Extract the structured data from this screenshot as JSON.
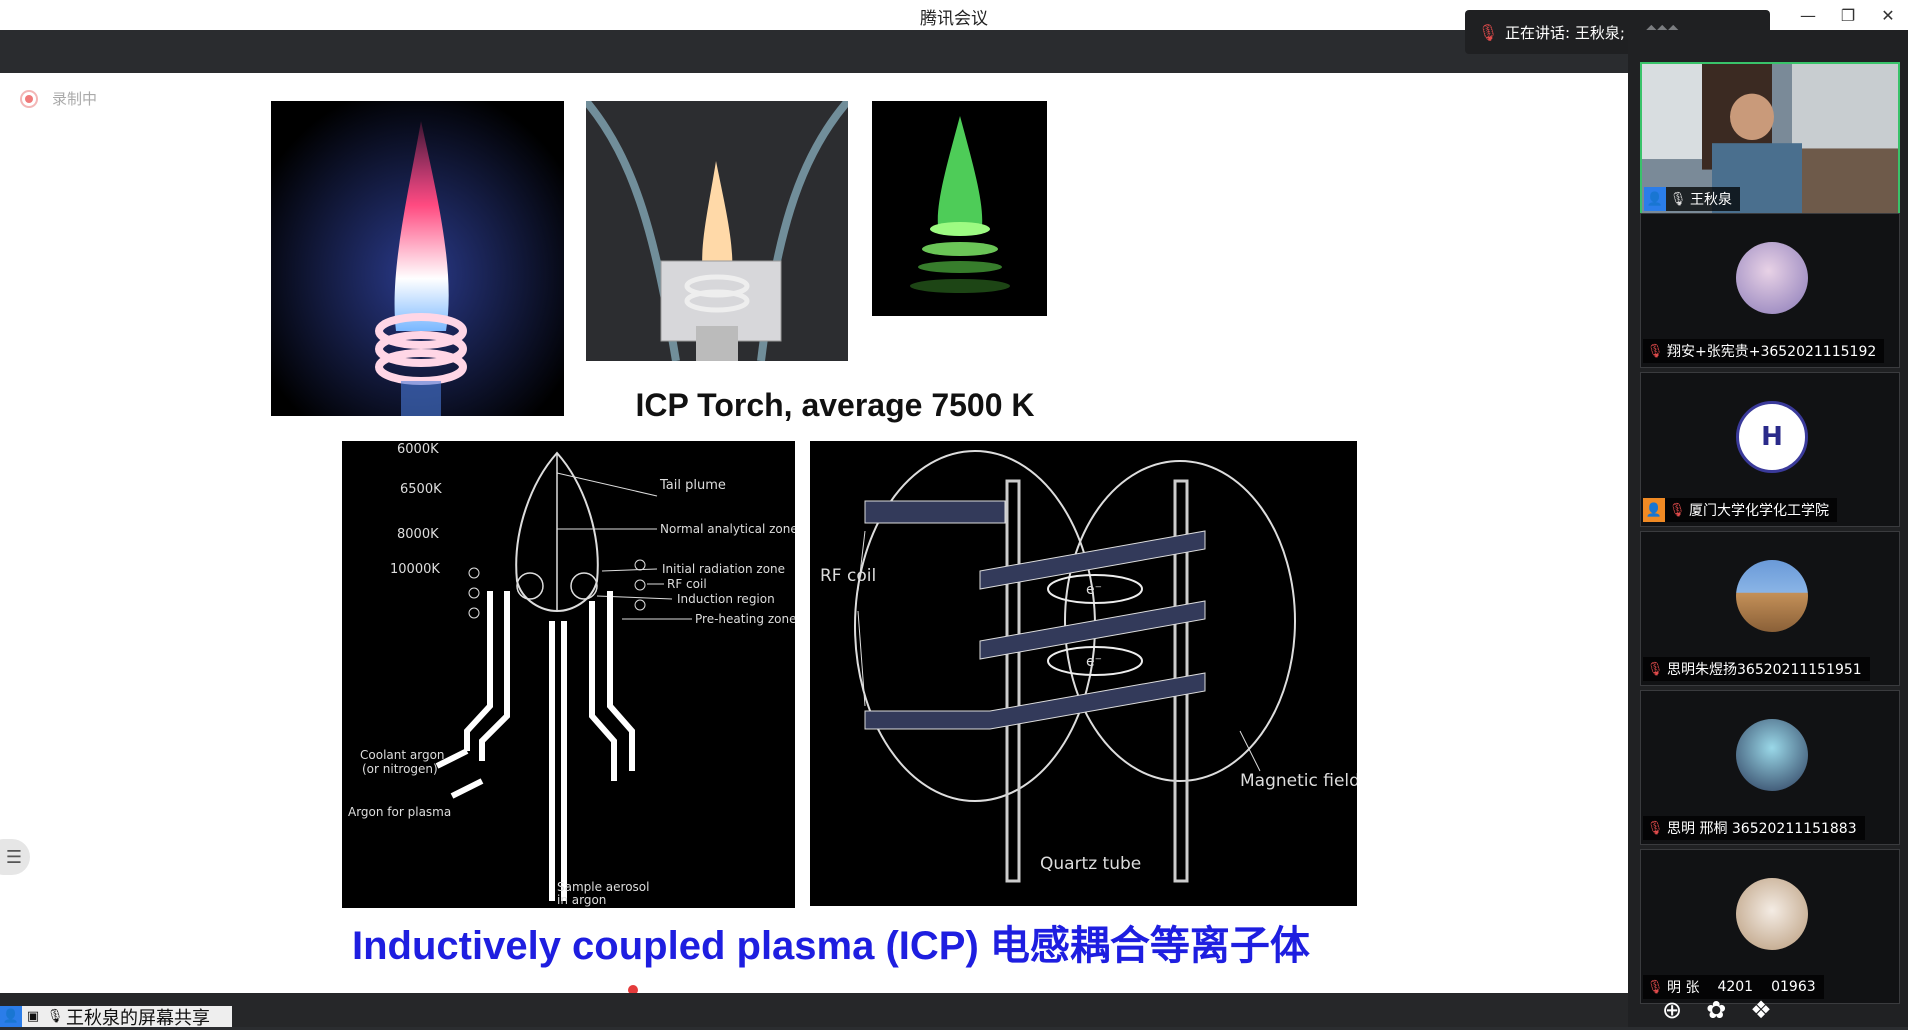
{
  "window": {
    "title": "腾讯会议",
    "controls": {
      "minimize": "—",
      "restore": "❐",
      "close": "✕"
    }
  },
  "speaking": {
    "label": "正在讲话: 王秋泉;"
  },
  "recording": {
    "label": "录制中"
  },
  "slide": {
    "heading_torch": "ICP Torch, average 7500 K",
    "heading_main": "Inductively coupled plasma (ICP) 电感耦合等离子体",
    "diagram_left": {
      "temps": [
        "6000K",
        "6500K",
        "8000K",
        "10000K"
      ],
      "labels": [
        "Tail plume",
        "Normal analytical zone",
        "Initial radiation zone",
        "RF coil",
        "Induction region",
        "Pre-heating zone",
        "Coolant argon",
        "(or nitrogen)",
        "Argon for plasma",
        "Sample aerosol",
        "in argon"
      ]
    },
    "diagram_right": {
      "labels": [
        "RF coil",
        "Magnetic field",
        "Quartz tube",
        "e⁻",
        "e⁻"
      ]
    }
  },
  "share_label": {
    "text": "王秋泉的屏幕共享"
  },
  "participants": [
    {
      "name": "王秋泉",
      "host": true,
      "mic": "on",
      "video": true
    },
    {
      "name": "翔安+张宪贵+3652021115192",
      "mic": "muted"
    },
    {
      "name": "厦门大学化学化工学院",
      "host": true,
      "mic": "muted"
    },
    {
      "name": "思明朱煜扬36520211151951",
      "mic": "muted"
    },
    {
      "name": "思明 邢桐 36520211151883",
      "mic": "muted"
    },
    {
      "name": "明 张",
      "name_tail": "4201",
      "name_end": "01963",
      "mic": "muted"
    }
  ],
  "colors": {
    "accent_green": "#39c36a",
    "heading_blue": "#1e1ee0",
    "muted_red": "#e04b4b"
  }
}
